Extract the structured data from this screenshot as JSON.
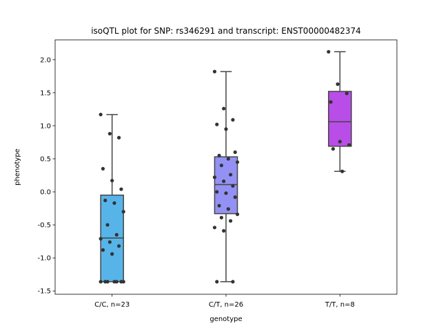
{
  "chart_data": {
    "type": "box",
    "title": "isoQTL plot for SNP: rs346291 and transcript: ENST00000482374",
    "xlabel": "genotype",
    "ylabel": "phenotype",
    "ylim": [
      -1.55,
      2.3
    ],
    "yticks": [
      "-1.5",
      "-1.0",
      "-0.5",
      "0.0",
      "0.5",
      "1.0",
      "1.5",
      "2.0"
    ],
    "grid": false,
    "categories": [
      "C/C, n=23",
      "C/T, n=26",
      "T/T, n=8"
    ],
    "box_colors": [
      "#56b4e9",
      "#9491f4",
      "#b94de8"
    ],
    "boxes": [
      {
        "category": "C/C, n=23",
        "whisker_low": -1.36,
        "q1": -1.36,
        "median": -0.7,
        "q3": -0.05,
        "whisker_high": 1.17,
        "points": [
          1.17,
          0.88,
          0.82,
          0.35,
          0.17,
          0.04,
          -0.13,
          -0.17,
          -0.3,
          -0.5,
          -0.65,
          -0.71,
          -0.76,
          -0.82,
          -0.88,
          -0.94,
          -1.36,
          -1.36,
          -1.36,
          -1.36,
          -1.36,
          -1.36,
          -1.36
        ]
      },
      {
        "category": "C/T, n=26",
        "whisker_low": -1.36,
        "q1": -0.33,
        "median": 0.11,
        "q3": 0.53,
        "whisker_high": 1.82,
        "points": [
          1.82,
          1.26,
          1.09,
          1.02,
          0.95,
          0.6,
          0.55,
          0.5,
          0.45,
          0.4,
          0.26,
          0.22,
          0.16,
          0.09,
          0.0,
          -0.02,
          -0.08,
          -0.21,
          -0.26,
          -0.34,
          -0.39,
          -0.44,
          -0.54,
          -0.59,
          -1.36,
          -1.36
        ]
      },
      {
        "category": "T/T, n=8",
        "whisker_low": 0.31,
        "q1": 0.69,
        "median": 1.06,
        "q3": 1.52,
        "whisker_high": 2.12,
        "points": [
          2.12,
          1.63,
          1.49,
          1.36,
          0.76,
          0.71,
          0.65,
          0.31
        ]
      }
    ]
  }
}
